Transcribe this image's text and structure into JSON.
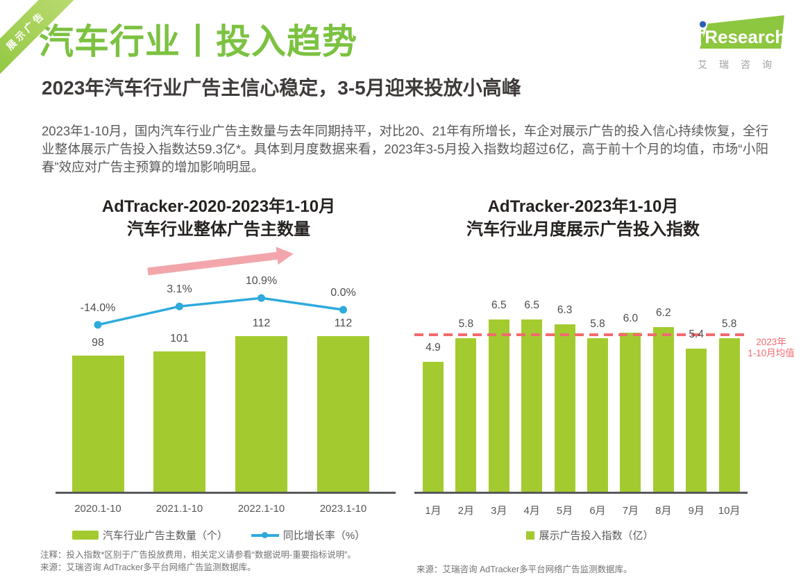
{
  "ribbon": {
    "label": "展示广告"
  },
  "logo": {
    "brand_i": "i",
    "brand_rest": "Research",
    "chinese": "艾瑞咨询"
  },
  "header": {
    "title": "汽车行业丨投入趋势",
    "subtitle": "2023年汽车行业广告主信心稳定，3-5月迎来投放小高峰",
    "paragraph": "2023年1-10月，国内汽车行业广告主数量与去年同期持平，对比20、21年有所增长，车企对展示广告的投入信心持续恢复，全行业整体展示广告投入指数达59.3亿*。具体到月度数据来看，2023年3-5月投入指数均超过6亿，高于前十个月的均值，市场“小阳春”效应对广告主预算的增加影响明显。"
  },
  "colors": {
    "brand_green": "#7CC241",
    "bar_green": "#A3CB2F",
    "line_blue": "#2EAADC",
    "arrow_pink": "#F2A6AB",
    "average_red": "#F2696F",
    "axis_gray": "#58595B"
  },
  "chart_data": [
    {
      "type": "bar+line",
      "title": "AdTracker-2020-2023年1-10月汽车行业整体广告主数量",
      "title_lines": [
        "AdTracker-2020-2023年1-10月",
        "汽车行业整体广告主数量"
      ],
      "categories": [
        "2020.1-10",
        "2021.1-10",
        "2022.1-10",
        "2023.1-10"
      ],
      "series": [
        {
          "name": "汽车行业广告主数量（个）",
          "type": "bar",
          "color": "#A3CB2F",
          "values": [
            98,
            101,
            112,
            112
          ],
          "labels": [
            "98",
            "101",
            "112",
            "112"
          ]
        },
        {
          "name": "同比增长率（%）",
          "type": "line",
          "color": "#2EAADC",
          "values": [
            -14.0,
            3.1,
            10.9,
            0.0
          ],
          "labels": [
            "-14.0%",
            "3.1%",
            "10.9%",
            "0.0%"
          ]
        }
      ],
      "legend_position": "bottom",
      "grid": false
    },
    {
      "type": "bar",
      "title": "AdTracker-2023年1-10月汽车行业月度展示广告投入指数",
      "title_lines": [
        "AdTracker-2023年1-10月",
        "汽车行业月度展示广告投入指数"
      ],
      "categories": [
        "1月",
        "2月",
        "3月",
        "4月",
        "5月",
        "6月",
        "7月",
        "8月",
        "9月",
        "10月"
      ],
      "series": [
        {
          "name": "展示广告投入指数（亿）",
          "type": "bar",
          "color": "#A3CB2F",
          "values": [
            4.9,
            5.8,
            6.5,
            6.5,
            6.3,
            5.8,
            6.0,
            6.2,
            5.4,
            5.8
          ],
          "labels": [
            "4.9",
            "5.8",
            "6.5",
            "6.5",
            "6.3",
            "5.8",
            "6.0",
            "6.2",
            "5.4",
            "5.8"
          ]
        }
      ],
      "average_line": {
        "value": 5.92,
        "color": "#F2696F",
        "label_lines": [
          "2023年",
          "1-10月均值"
        ]
      },
      "legend_position": "bottom",
      "grid": false
    }
  ],
  "footnotes": {
    "left_note": "注释：投入指数*区别于广告投放费用，相关定义请参看“数据说明-重要指标说明”。",
    "left_source": "来源：艾瑞咨询 AdTracker多平台网络广告监测数据库。",
    "right_source": "来源：艾瑞咨询 AdTracker多平台网络广告监测数据库。"
  }
}
